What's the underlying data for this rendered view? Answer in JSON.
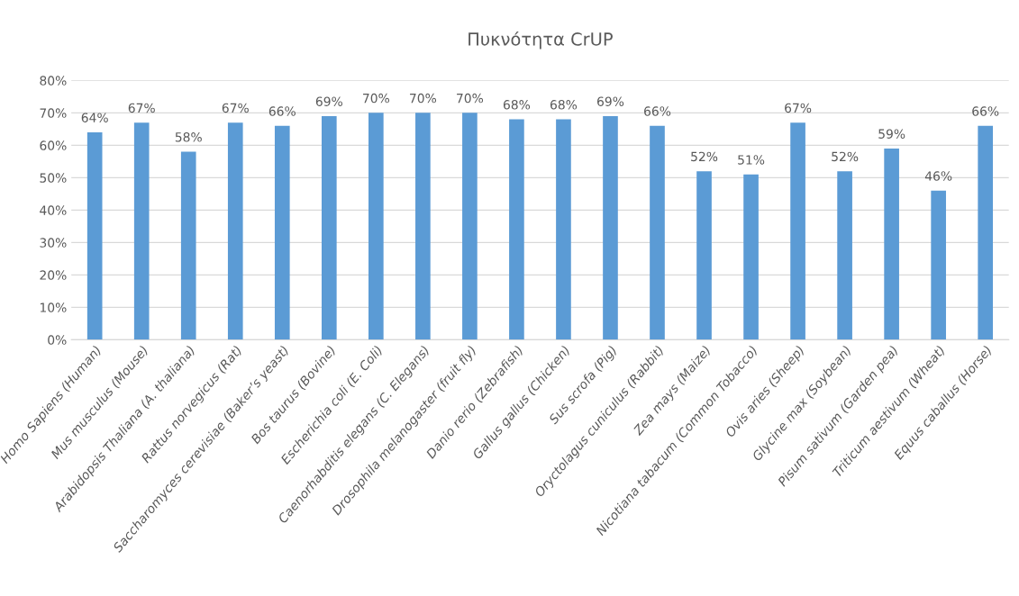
{
  "chart_data": {
    "type": "bar",
    "title": "Πυκνότητα CrUP",
    "categories": [
      "Homo Sapiens (Human)",
      "Mus musculus (Mouse)",
      "Arabidopsis Thaliana (A. thaliana)",
      "Rattus norvegicus (Rat)",
      "Saccharomyces cerevisiae (Baker’s yeast)",
      "Bos taurus (Bovine)",
      "Escherichia coli (E. Coli)",
      "Caenorhabditis elegans (C. Elegans)",
      "Drosophila melanogaster (fruit fly)",
      "Danio rerio (Zebrafish)",
      "Gallus gallus (Chicken)",
      "Sus scrofa (Pig)",
      "Oryctolagus cuniculus (Rabbit)",
      "Zea mays (Maize)",
      "Nicotiana tabacum (Common Tobacco)",
      "Ovis aries (Sheep)",
      "Glycine max (Soybean)",
      "Pisum sativum (Garden pea)",
      "Triticum aestivum (Wheat)",
      "Equus caballus (Horse)"
    ],
    "values": [
      64,
      67,
      58,
      67,
      66,
      69,
      70,
      70,
      70,
      68,
      68,
      69,
      66,
      52,
      51,
      67,
      52,
      59,
      46,
      66
    ],
    "value_labels": [
      "64%",
      "67%",
      "58%",
      "67%",
      "66%",
      "69%",
      "70%",
      "70%",
      "70%",
      "68%",
      "68%",
      "69%",
      "66%",
      "52%",
      "51%",
      "67%",
      "52%",
      "59%",
      "46%",
      "66%"
    ],
    "color": "#5b9bd5",
    "ylim": [
      0,
      80
    ],
    "yticks": [
      {
        "value": 0,
        "label": "0%"
      },
      {
        "value": 10,
        "label": "10%"
      },
      {
        "value": 20,
        "label": "20%"
      },
      {
        "value": 30,
        "label": "30%"
      },
      {
        "value": 40,
        "label": "40%"
      },
      {
        "value": 50,
        "label": "50%"
      },
      {
        "value": 60,
        "label": "60%"
      },
      {
        "value": 70,
        "label": "70%"
      },
      {
        "value": 80,
        "label": "80%"
      }
    ],
    "grid": "y",
    "legend": false
  }
}
